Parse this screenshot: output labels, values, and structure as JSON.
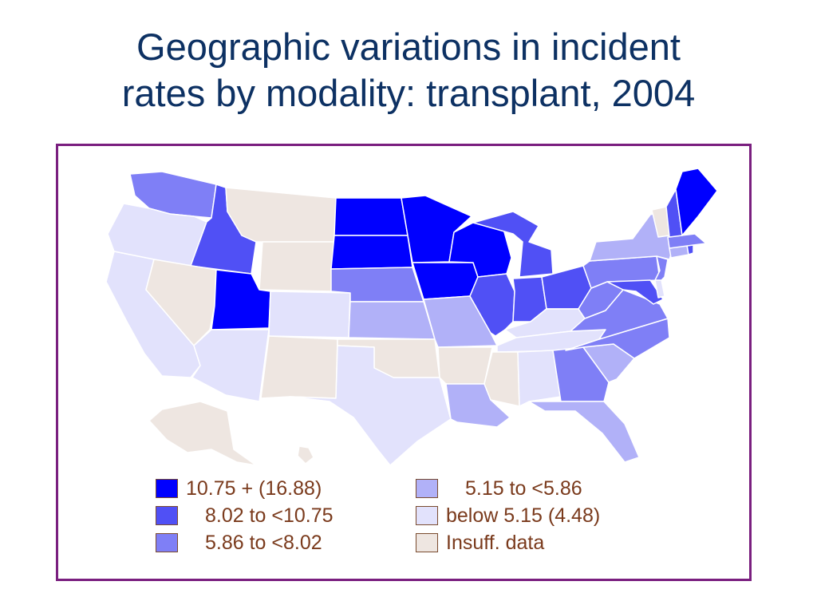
{
  "title": {
    "line1": "Geographic variations in incident",
    "line2": "rates by modality: transplant, 2004"
  },
  "colors": {
    "high": "#0000ff",
    "mid_high": "#5050f5",
    "mid": "#7f7ff6",
    "mid_low": "#b1b1f8",
    "low": "#e2e2fc",
    "insufficient": "#eee6e1",
    "frame_border": "#7a1f7f",
    "title": "#0d3163",
    "legend_text": "#7a3a1c"
  },
  "legend": {
    "items": [
      {
        "label": "10.75 + (16.88)",
        "class": "high"
      },
      {
        "label": "8.02 to <10.75",
        "class": "mid_high"
      },
      {
        "label": "5.86 to <8.02",
        "class": "mid"
      },
      {
        "label": "5.15 to <5.86",
        "class": "mid_low"
      },
      {
        "label": "below 5.15 (4.48)",
        "class": "low"
      },
      {
        "label": "Insuff. data",
        "class": "insufficient"
      }
    ]
  },
  "states": {
    "WA": "mid",
    "OR": "low",
    "CA": "low",
    "ID": "mid_high",
    "NV": "insufficient",
    "MT": "insufficient",
    "WY": "insufficient",
    "UT": "high",
    "AZ": "low",
    "CO": "low",
    "NM": "insufficient",
    "ND": "high",
    "SD": "high",
    "NE": "mid",
    "KS": "mid_low",
    "OK": "insufficient",
    "TX": "low",
    "MN": "high",
    "IA": "high",
    "MO": "mid_low",
    "AR": "insufficient",
    "LA": "mid_low",
    "WI": "high",
    "IL": "mid_high",
    "MI": "mid_high",
    "IN": "mid_high",
    "OH": "mid_high",
    "KY": "low",
    "TN": "low",
    "MS": "insufficient",
    "AL": "low",
    "GA": "mid",
    "FL": "mid_low",
    "SC": "mid_low",
    "NC": "mid",
    "VA": "mid",
    "WV": "mid",
    "MD": "mid_high",
    "DE": "low",
    "PA": "mid",
    "NJ": "mid",
    "NY": "mid_low",
    "CT": "mid_low",
    "RI": "mid_high",
    "MA": "mid",
    "VT": "insufficient",
    "NH": "mid_high",
    "ME": "high",
    "AK": "insufficient",
    "HI": "insufficient"
  }
}
